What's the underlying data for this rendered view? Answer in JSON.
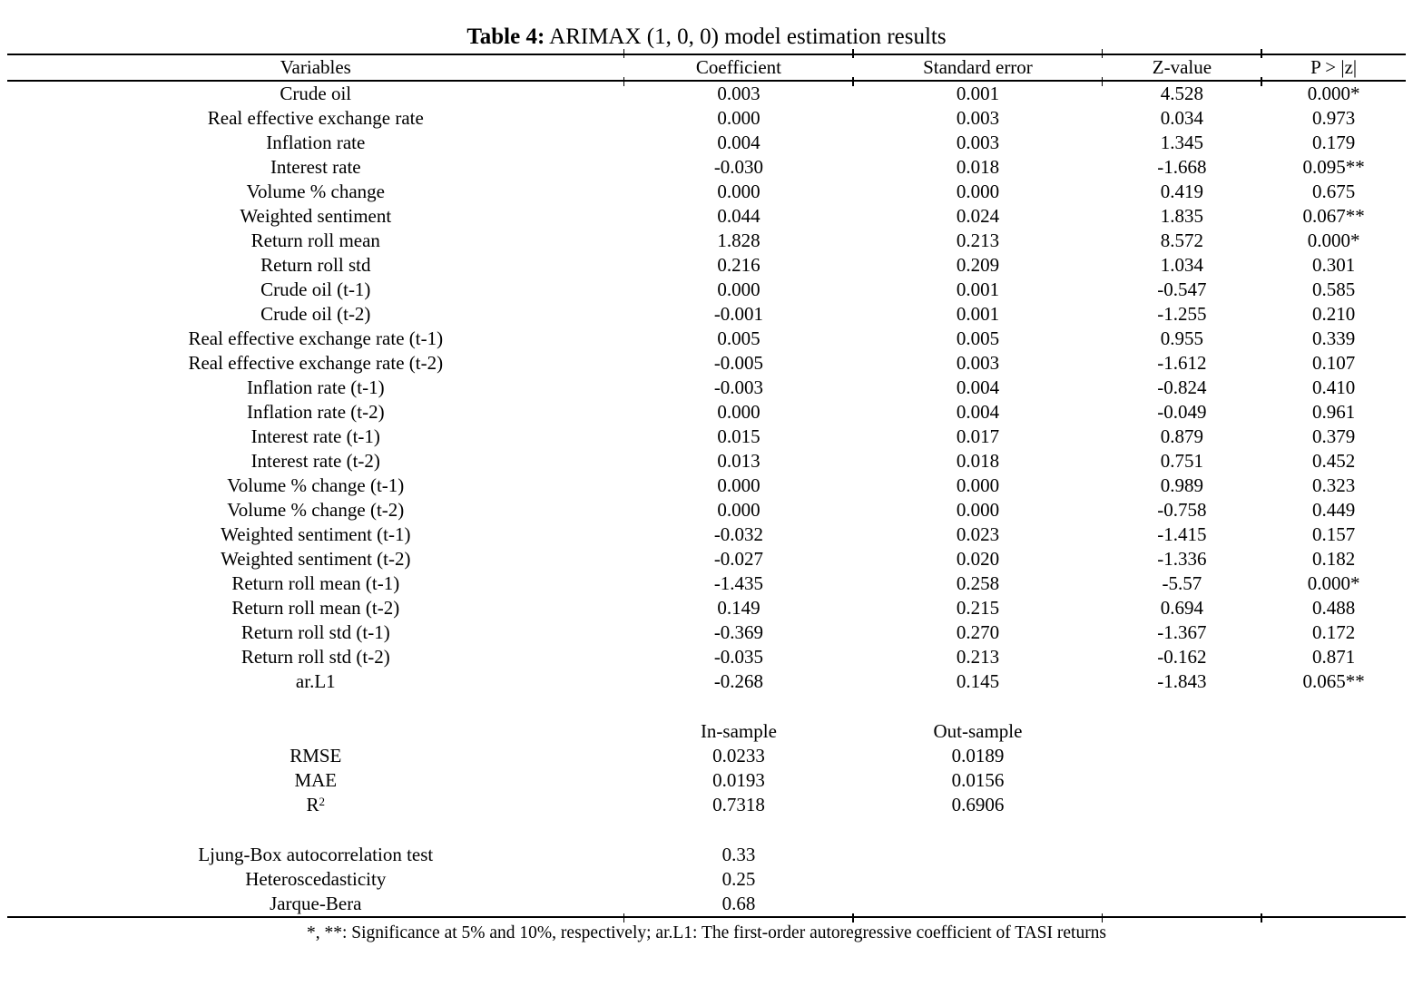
{
  "colors": {
    "text": "#000000",
    "background": "#ffffff"
  },
  "title": {
    "label": "Table 4:",
    "text": " ARIMAX (1, 0, 0) model estimation results"
  },
  "table": {
    "headers": [
      "Variables",
      "Coefficient",
      "Standard error",
      "Z-value",
      "P > |z|"
    ],
    "rows": [
      [
        "Crude oil",
        "0.003",
        "0.001",
        "4.528",
        "0.000*"
      ],
      [
        "Real effective exchange rate",
        "0.000",
        "0.003",
        "0.034",
        "0.973"
      ],
      [
        "Inflation rate",
        "0.004",
        "0.003",
        "1.345",
        "0.179"
      ],
      [
        "Interest rate",
        "-0.030",
        "0.018",
        "-1.668",
        "0.095**"
      ],
      [
        "Volume % change",
        "0.000",
        "0.000",
        "0.419",
        "0.675"
      ],
      [
        "Weighted sentiment",
        "0.044",
        "0.024",
        "1.835",
        "0.067**"
      ],
      [
        "Return roll mean",
        "1.828",
        "0.213",
        "8.572",
        "0.000*"
      ],
      [
        "Return roll std",
        "0.216",
        "0.209",
        "1.034",
        "0.301"
      ],
      [
        "Crude oil (t-1)",
        "0.000",
        "0.001",
        "-0.547",
        "0.585"
      ],
      [
        "Crude oil (t-2)",
        "-0.001",
        "0.001",
        "-1.255",
        "0.210"
      ],
      [
        "Real effective exchange rate (t-1)",
        "0.005",
        "0.005",
        "0.955",
        "0.339"
      ],
      [
        "Real effective exchange rate (t-2)",
        "-0.005",
        "0.003",
        "-1.612",
        "0.107"
      ],
      [
        "Inflation rate (t-1)",
        "-0.003",
        "0.004",
        "-0.824",
        "0.410"
      ],
      [
        "Inflation rate (t-2)",
        "0.000",
        "0.004",
        "-0.049",
        "0.961"
      ],
      [
        "Interest rate (t-1)",
        "0.015",
        "0.017",
        "0.879",
        "0.379"
      ],
      [
        "Interest rate (t-2)",
        "0.013",
        "0.018",
        "0.751",
        "0.452"
      ],
      [
        "Volume % change (t-1)",
        "0.000",
        "0.000",
        "0.989",
        "0.323"
      ],
      [
        "Volume % change (t-2)",
        "0.000",
        "0.000",
        "-0.758",
        "0.449"
      ],
      [
        "Weighted sentiment (t-1)",
        "-0.032",
        "0.023",
        "-1.415",
        "0.157"
      ],
      [
        "Weighted sentiment (t-2)",
        "-0.027",
        "0.020",
        "-1.336",
        "0.182"
      ],
      [
        "Return roll mean (t-1)",
        "-1.435",
        "0.258",
        "-5.57",
        "0.000*"
      ],
      [
        "Return roll mean (t-2)",
        "0.149",
        "0.215",
        "0.694",
        "0.488"
      ],
      [
        "Return roll std (t-1)",
        "-0.369",
        "0.270",
        "-1.367",
        "0.172"
      ],
      [
        "Return roll std (t-2)",
        "-0.035",
        "0.213",
        "-0.162",
        "0.871"
      ],
      [
        "ar.L1",
        "-0.268",
        "0.145",
        "-1.843",
        "0.065**"
      ]
    ]
  },
  "metrics": {
    "col_headers": [
      "In-sample",
      "Out-sample"
    ],
    "rows": [
      {
        "label": "RMSE",
        "sup": "",
        "in_sample": "0.0233",
        "out_sample": "0.0189"
      },
      {
        "label": "MAE",
        "sup": "",
        "in_sample": "0.0193",
        "out_sample": "0.0156"
      },
      {
        "label": "R",
        "sup": "2",
        "in_sample": "0.7318",
        "out_sample": "0.6906"
      }
    ]
  },
  "diagnostics": [
    {
      "label": "Ljung-Box autocorrelation test",
      "value": "0.33"
    },
    {
      "label": "Heteroscedasticity",
      "value": "0.25"
    },
    {
      "label": "Jarque-Bera",
      "value": "0.68"
    }
  ],
  "footnote": "*, **: Significance at 5% and 10%, respectively; ar.L1: The first-order autoregressive coefficient of TASI returns"
}
